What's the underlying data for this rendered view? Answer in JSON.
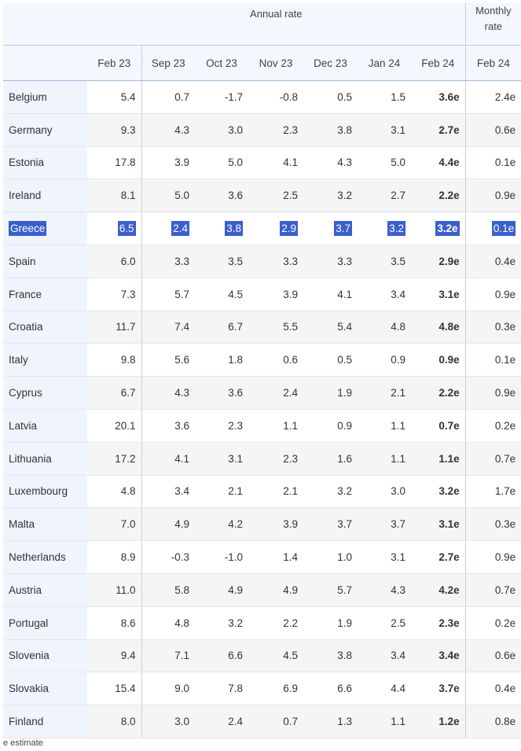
{
  "table": {
    "group_headers": [
      "Annual rate",
      "Monthly rate"
    ],
    "columns": [
      "Feb 23",
      "Sep 23",
      "Oct 23",
      "Nov 23",
      "Dec 23",
      "Jan 24",
      "Feb 24",
      "Feb 24"
    ],
    "rows": [
      {
        "country": "Belgium",
        "values": [
          "5.4",
          "0.7",
          "-1.7",
          "-0.8",
          "0.5",
          "1.5",
          "3.6e",
          "2.4e"
        ]
      },
      {
        "country": "Germany",
        "values": [
          "9.3",
          "4.3",
          "3.0",
          "2.3",
          "3.8",
          "3.1",
          "2.7e",
          "0.6e"
        ]
      },
      {
        "country": "Estonia",
        "values": [
          "17.8",
          "3.9",
          "5.0",
          "4.1",
          "4.3",
          "5.0",
          "4.4e",
          "0.1e"
        ]
      },
      {
        "country": "Ireland",
        "values": [
          "8.1",
          "5.0",
          "3.6",
          "2.5",
          "3.2",
          "2.7",
          "2.2e",
          "0.9e"
        ]
      },
      {
        "country": "Greece",
        "values": [
          "6.5",
          "2.4",
          "3.8",
          "2.9",
          "3.7",
          "3.2",
          "3.2e",
          "0.1e"
        ]
      },
      {
        "country": "Spain",
        "values": [
          "6.0",
          "3.3",
          "3.5",
          "3.3",
          "3.3",
          "3.5",
          "2.9e",
          "0.4e"
        ]
      },
      {
        "country": "France",
        "values": [
          "7.3",
          "5.7",
          "4.5",
          "3.9",
          "4.1",
          "3.4",
          "3.1e",
          "0.9e"
        ]
      },
      {
        "country": "Croatia",
        "values": [
          "11.7",
          "7.4",
          "6.7",
          "5.5",
          "5.4",
          "4.8",
          "4.8e",
          "0.3e"
        ]
      },
      {
        "country": "Italy",
        "values": [
          "9.8",
          "5.6",
          "1.8",
          "0.6",
          "0.5",
          "0.9",
          "0.9e",
          "0.1e"
        ]
      },
      {
        "country": "Cyprus",
        "values": [
          "6.7",
          "4.3",
          "3.6",
          "2.4",
          "1.9",
          "2.1",
          "2.2e",
          "0.9e"
        ]
      },
      {
        "country": "Latvia",
        "values": [
          "20.1",
          "3.6",
          "2.3",
          "1.1",
          "0.9",
          "1.1",
          "0.7e",
          "0.2e"
        ]
      },
      {
        "country": "Lithuania",
        "values": [
          "17.2",
          "4.1",
          "3.1",
          "2.3",
          "1.6",
          "1.1",
          "1.1e",
          "0.7e"
        ]
      },
      {
        "country": "Luxembourg",
        "values": [
          "4.8",
          "3.4",
          "2.1",
          "2.1",
          "3.2",
          "3.0",
          "3.2e",
          "1.7e"
        ]
      },
      {
        "country": "Malta",
        "values": [
          "7.0",
          "4.9",
          "4.2",
          "3.9",
          "3.7",
          "3.7",
          "3.1e",
          "0.3e"
        ]
      },
      {
        "country": "Netherlands",
        "values": [
          "8.9",
          "-0.3",
          "-1.0",
          "1.4",
          "1.0",
          "3.1",
          "2.7e",
          "0.9e"
        ]
      },
      {
        "country": "Austria",
        "values": [
          "11.0",
          "5.8",
          "4.9",
          "4.9",
          "5.7",
          "4.3",
          "4.2e",
          "0.7e"
        ]
      },
      {
        "country": "Portugal",
        "values": [
          "8.6",
          "4.8",
          "3.2",
          "2.2",
          "1.9",
          "2.5",
          "2.3e",
          "0.2e"
        ]
      },
      {
        "country": "Slovenia",
        "values": [
          "9.4",
          "7.1",
          "6.6",
          "4.5",
          "3.8",
          "3.4",
          "3.4e",
          "0.6e"
        ]
      },
      {
        "country": "Slovakia",
        "values": [
          "15.4",
          "9.0",
          "7.8",
          "6.9",
          "6.6",
          "4.4",
          "3.7e",
          "0.4e"
        ]
      },
      {
        "country": "Finland",
        "values": [
          "8.0",
          "3.0",
          "2.4",
          "0.7",
          "1.3",
          "1.1",
          "1.2e",
          "0.8e"
        ]
      }
    ]
  },
  "footnote": "e estimate"
}
